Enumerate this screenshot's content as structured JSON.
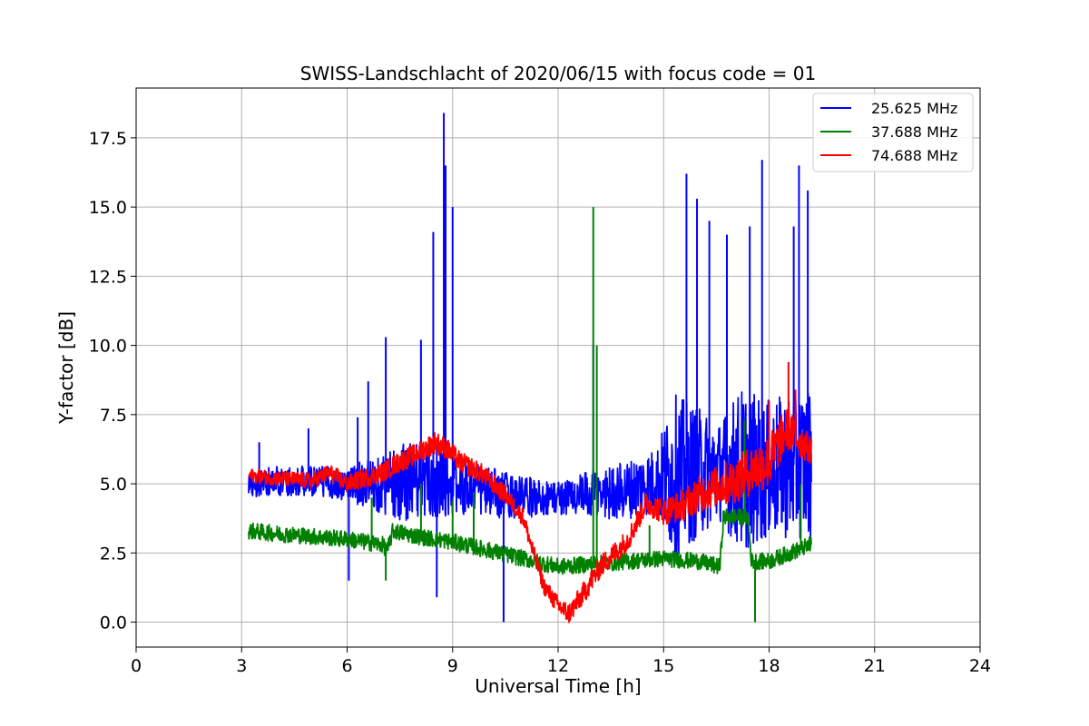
{
  "chart_data": {
    "type": "line",
    "title": "SWISS-Landschlacht of 2020/06/15 with focus code = 01",
    "xlabel": "Universal Time [h]",
    "ylabel": "Y-factor [dB]",
    "xlim": [
      0,
      24
    ],
    "ylim": [
      -0.9,
      19.3
    ],
    "xticks": [
      0,
      3,
      6,
      9,
      12,
      15,
      18,
      21,
      24
    ],
    "xtick_labels": [
      "0",
      "3",
      "6",
      "9",
      "12",
      "15",
      "18",
      "21",
      "24"
    ],
    "yticks": [
      0.0,
      2.5,
      5.0,
      7.5,
      10.0,
      12.5,
      15.0,
      17.5
    ],
    "ytick_labels": [
      "0.0",
      "2.5",
      "5.0",
      "7.5",
      "10.0",
      "12.5",
      "15.0",
      "17.5"
    ],
    "grid": true,
    "legend_position": "top-right",
    "series": [
      {
        "name": "25.625 MHz",
        "color": "#0000ff",
        "baseline": [
          [
            3.2,
            5.0
          ],
          [
            4.0,
            5.1
          ],
          [
            5.0,
            5.1
          ],
          [
            6.0,
            5.0
          ],
          [
            7.0,
            5.0
          ],
          [
            8.0,
            5.1
          ],
          [
            9.0,
            5.0
          ],
          [
            10.0,
            4.7
          ],
          [
            11.0,
            4.5
          ],
          [
            12.0,
            4.5
          ],
          [
            13.0,
            4.6
          ],
          [
            14.0,
            4.8
          ],
          [
            15.0,
            5.2
          ],
          [
            16.0,
            5.4
          ],
          [
            17.0,
            5.5
          ],
          [
            18.0,
            5.5
          ],
          [
            19.2,
            5.8
          ]
        ],
        "noise": [
          [
            3.2,
            0.5
          ],
          [
            6.0,
            0.6
          ],
          [
            7.8,
            1.5
          ],
          [
            9.5,
            1.0
          ],
          [
            12.0,
            0.6
          ],
          [
            13.0,
            0.9
          ],
          [
            14.8,
            1.2
          ],
          [
            15.3,
            3.0
          ],
          [
            16.6,
            1.8
          ],
          [
            17.2,
            3.0
          ],
          [
            18.0,
            2.5
          ],
          [
            19.2,
            2.8
          ]
        ],
        "spikes": [
          [
            3.5,
            6.5
          ],
          [
            4.9,
            7.0
          ],
          [
            6.05,
            1.5
          ],
          [
            6.3,
            7.4
          ],
          [
            6.6,
            8.7
          ],
          [
            7.1,
            10.3
          ],
          [
            8.1,
            10.2
          ],
          [
            8.45,
            14.1
          ],
          [
            8.75,
            18.4
          ],
          [
            8.8,
            16.5
          ],
          [
            9.0,
            15.0
          ],
          [
            10.45,
            0.0
          ],
          [
            13.0,
            10.0
          ],
          [
            15.65,
            16.2
          ],
          [
            15.95,
            15.3
          ],
          [
            16.3,
            14.5
          ],
          [
            16.8,
            14.0
          ],
          [
            17.45,
            14.3
          ],
          [
            17.8,
            16.7
          ],
          [
            18.0,
            4.0
          ],
          [
            18.7,
            14.3
          ],
          [
            18.85,
            16.5
          ],
          [
            19.1,
            15.6
          ],
          [
            8.55,
            0.9
          ]
        ]
      },
      {
        "name": "37.688 MHz",
        "color": "#008000",
        "baseline": [
          [
            3.2,
            3.3
          ],
          [
            4.0,
            3.2
          ],
          [
            5.0,
            3.1
          ],
          [
            6.0,
            3.0
          ],
          [
            7.0,
            2.8
          ],
          [
            7.15,
            2.6
          ],
          [
            7.3,
            3.3
          ],
          [
            8.0,
            3.1
          ],
          [
            9.0,
            2.9
          ],
          [
            10.0,
            2.6
          ],
          [
            11.0,
            2.3
          ],
          [
            12.0,
            2.0
          ],
          [
            13.0,
            2.1
          ],
          [
            14.0,
            2.2
          ],
          [
            15.0,
            2.3
          ],
          [
            16.0,
            2.2
          ],
          [
            16.6,
            2.0
          ],
          [
            16.7,
            3.8
          ],
          [
            17.4,
            3.8
          ],
          [
            17.5,
            2.2
          ],
          [
            18.0,
            2.2
          ],
          [
            19.2,
            2.8
          ]
        ],
        "noise": [
          [
            3.2,
            0.3
          ],
          [
            19.2,
            0.3
          ]
        ],
        "spikes": [
          [
            6.7,
            4.5
          ],
          [
            7.1,
            1.5
          ],
          [
            8.1,
            5.0
          ],
          [
            9.0,
            4.4
          ],
          [
            9.6,
            4.7
          ],
          [
            13.0,
            15.0
          ],
          [
            13.1,
            10.0
          ],
          [
            14.6,
            3.5
          ],
          [
            17.3,
            7.3
          ],
          [
            17.6,
            0.0
          ],
          [
            18.9,
            5.0
          ]
        ]
      },
      {
        "name": "74.688 MHz",
        "color": "#ff0000",
        "baseline": [
          [
            3.2,
            5.3
          ],
          [
            4.0,
            5.2
          ],
          [
            5.0,
            5.1
          ],
          [
            5.5,
            5.4
          ],
          [
            6.0,
            5.0
          ],
          [
            6.5,
            5.2
          ],
          [
            7.0,
            5.4
          ],
          [
            7.5,
            5.8
          ],
          [
            8.0,
            6.1
          ],
          [
            8.5,
            6.5
          ],
          [
            8.8,
            6.3
          ],
          [
            9.2,
            5.8
          ],
          [
            9.8,
            5.4
          ],
          [
            10.5,
            4.6
          ],
          [
            11.0,
            3.8
          ],
          [
            11.3,
            2.5
          ],
          [
            11.6,
            1.3
          ],
          [
            12.0,
            0.6
          ],
          [
            12.3,
            0.3
          ],
          [
            12.7,
            1.0
          ],
          [
            13.2,
            2.0
          ],
          [
            13.6,
            2.5
          ],
          [
            14.0,
            3.0
          ],
          [
            14.5,
            4.3
          ],
          [
            15.0,
            4.0
          ],
          [
            15.5,
            4.2
          ],
          [
            16.0,
            4.6
          ],
          [
            16.5,
            4.9
          ],
          [
            17.0,
            5.1
          ],
          [
            17.5,
            5.5
          ],
          [
            18.0,
            5.8
          ],
          [
            18.5,
            7.0
          ],
          [
            19.2,
            6.2
          ]
        ],
        "noise": [
          [
            3.2,
            0.25
          ],
          [
            8.5,
            0.4
          ],
          [
            11.5,
            0.3
          ],
          [
            12.5,
            0.4
          ],
          [
            14.5,
            0.4
          ],
          [
            18.0,
            1.0
          ],
          [
            19.2,
            0.5
          ]
        ],
        "spikes": [
          [
            18.0,
            8.0
          ],
          [
            18.55,
            9.4
          ],
          [
            18.75,
            8.4
          ]
        ]
      }
    ]
  }
}
